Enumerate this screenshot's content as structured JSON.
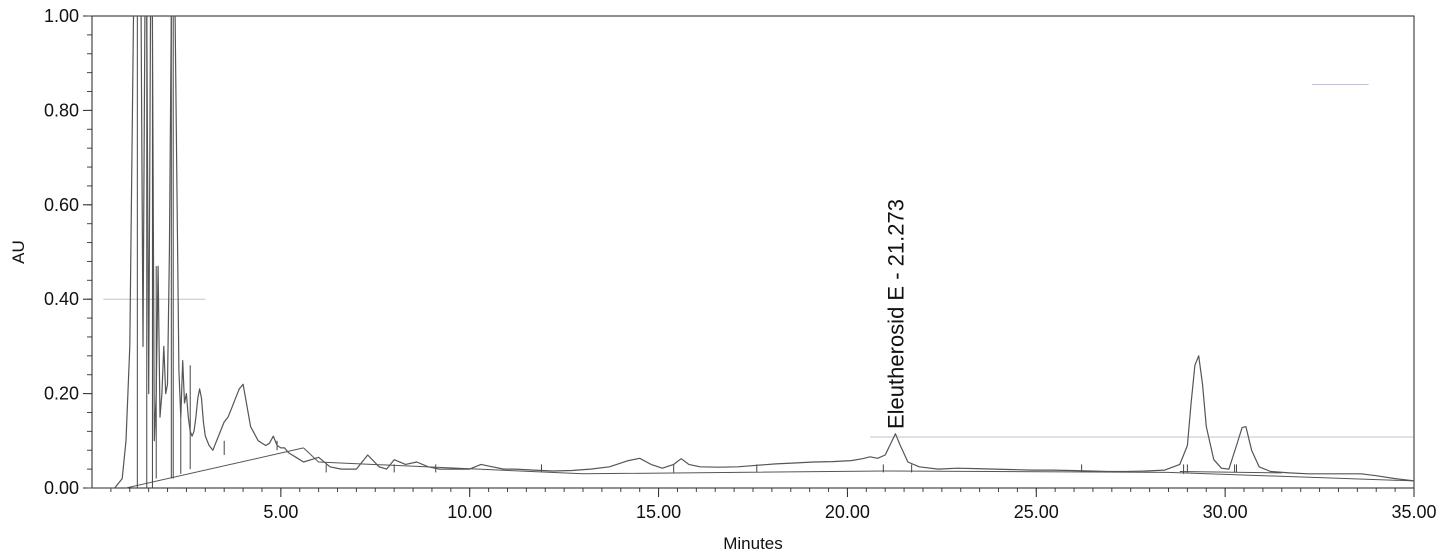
{
  "chart_data": {
    "type": "line",
    "title": "",
    "xlabel": "Minutes",
    "ylabel": "AU",
    "xlim": [
      0,
      35
    ],
    "ylim": [
      0,
      1.0
    ],
    "x_ticks": [
      5,
      10,
      15,
      20,
      25,
      30,
      35
    ],
    "x_tick_labels": [
      "5.00",
      "10.00",
      "15.00",
      "20.00",
      "25.00",
      "30.00",
      "35.00"
    ],
    "y_ticks": [
      0,
      0.2,
      0.4,
      0.6,
      0.8,
      1.0
    ],
    "y_tick_labels": [
      "0.00",
      "0.20",
      "0.40",
      "0.60",
      "0.80",
      "1.00"
    ],
    "grid": false,
    "colors": {
      "trace": "#555555",
      "marker": "#444444",
      "reference": "#9a9ab8"
    },
    "series": [
      {
        "x": [
          0,
          0.6,
          0.8,
          0.9,
          1.0,
          1.1,
          1.2,
          1.3,
          1.35,
          1.4,
          1.45,
          1.5,
          1.55,
          1.6,
          1.65,
          1.7,
          1.75,
          1.8,
          1.85,
          1.9,
          1.95,
          2.0,
          2.05,
          2.1,
          2.2,
          2.3,
          2.35,
          2.4,
          2.45,
          2.5,
          2.55,
          2.6,
          2.65,
          2.7,
          2.75,
          2.8,
          2.85,
          2.9,
          2.95,
          3.0,
          3.1,
          3.2,
          3.3,
          3.4,
          3.5,
          3.6,
          3.7,
          3.8,
          3.9,
          4.0,
          4.2,
          4.4,
          4.6,
          4.7,
          4.8,
          4.9,
          5.0,
          5.1,
          5.2,
          5.3,
          5.4,
          5.6,
          5.8,
          6.0,
          6.3,
          6.6,
          7.0,
          7.3,
          7.6,
          7.8,
          8.0,
          8.3,
          8.6,
          8.9,
          9.2,
          9.5,
          10.0,
          10.3,
          10.6,
          10.9,
          11.2,
          11.7,
          12.2,
          12.7,
          13.2,
          13.7,
          14.2,
          14.5,
          14.8,
          15.1,
          15.4,
          15.6,
          15.8,
          16.1,
          16.6,
          17.1,
          17.6,
          18.1,
          18.6,
          19.1,
          19.6,
          20.1,
          20.4,
          20.6,
          20.8,
          21.0,
          21.15,
          21.27,
          21.4,
          21.6,
          21.9,
          22.4,
          22.9,
          23.4,
          23.9,
          24.4,
          24.9,
          25.4,
          25.9,
          26.4,
          26.9,
          27.4,
          27.9,
          28.4,
          28.8,
          29.0,
          29.1,
          29.2,
          29.3,
          29.4,
          29.5,
          29.7,
          29.9,
          30.1,
          30.3,
          30.45,
          30.55,
          30.7,
          30.9,
          31.2,
          31.7,
          32.2,
          32.7,
          33.2,
          33.6,
          34.0,
          34.5,
          35.0
        ],
        "y": [
          0.0,
          0.0,
          0.02,
          0.1,
          0.3,
          1.0,
          1.0,
          1.0,
          0.3,
          1.0,
          1.0,
          0.2,
          1.0,
          1.0,
          0.1,
          0.2,
          0.47,
          0.15,
          0.2,
          0.3,
          0.2,
          0.22,
          0.5,
          1.0,
          1.0,
          0.25,
          0.15,
          0.27,
          0.18,
          0.2,
          0.15,
          0.12,
          0.11,
          0.12,
          0.15,
          0.19,
          0.21,
          0.19,
          0.14,
          0.11,
          0.09,
          0.08,
          0.1,
          0.12,
          0.14,
          0.15,
          0.17,
          0.19,
          0.21,
          0.22,
          0.13,
          0.1,
          0.09,
          0.095,
          0.11,
          0.09,
          0.085,
          0.085,
          0.075,
          0.07,
          0.065,
          0.055,
          0.06,
          0.065,
          0.045,
          0.04,
          0.04,
          0.07,
          0.045,
          0.04,
          0.06,
          0.05,
          0.055,
          0.045,
          0.04,
          0.04,
          0.04,
          0.05,
          0.045,
          0.04,
          0.04,
          0.038,
          0.036,
          0.037,
          0.04,
          0.045,
          0.058,
          0.063,
          0.05,
          0.042,
          0.05,
          0.062,
          0.05,
          0.045,
          0.044,
          0.045,
          0.048,
          0.051,
          0.053,
          0.055,
          0.056,
          0.058,
          0.062,
          0.066,
          0.063,
          0.07,
          0.095,
          0.115,
          0.09,
          0.055,
          0.045,
          0.04,
          0.042,
          0.041,
          0.04,
          0.039,
          0.038,
          0.038,
          0.037,
          0.036,
          0.035,
          0.035,
          0.036,
          0.038,
          0.05,
          0.09,
          0.18,
          0.26,
          0.28,
          0.22,
          0.13,
          0.06,
          0.042,
          0.04,
          0.09,
          0.128,
          0.13,
          0.08,
          0.045,
          0.035,
          0.032,
          0.03,
          0.03,
          0.03,
          0.03,
          0.026,
          0.02,
          0.015
        ]
      }
    ],
    "annotations": [
      {
        "x": 21.27,
        "y": 0.125,
        "text": "Eleutherosid E - 21.273",
        "orientation": "vertical"
      }
    ]
  }
}
